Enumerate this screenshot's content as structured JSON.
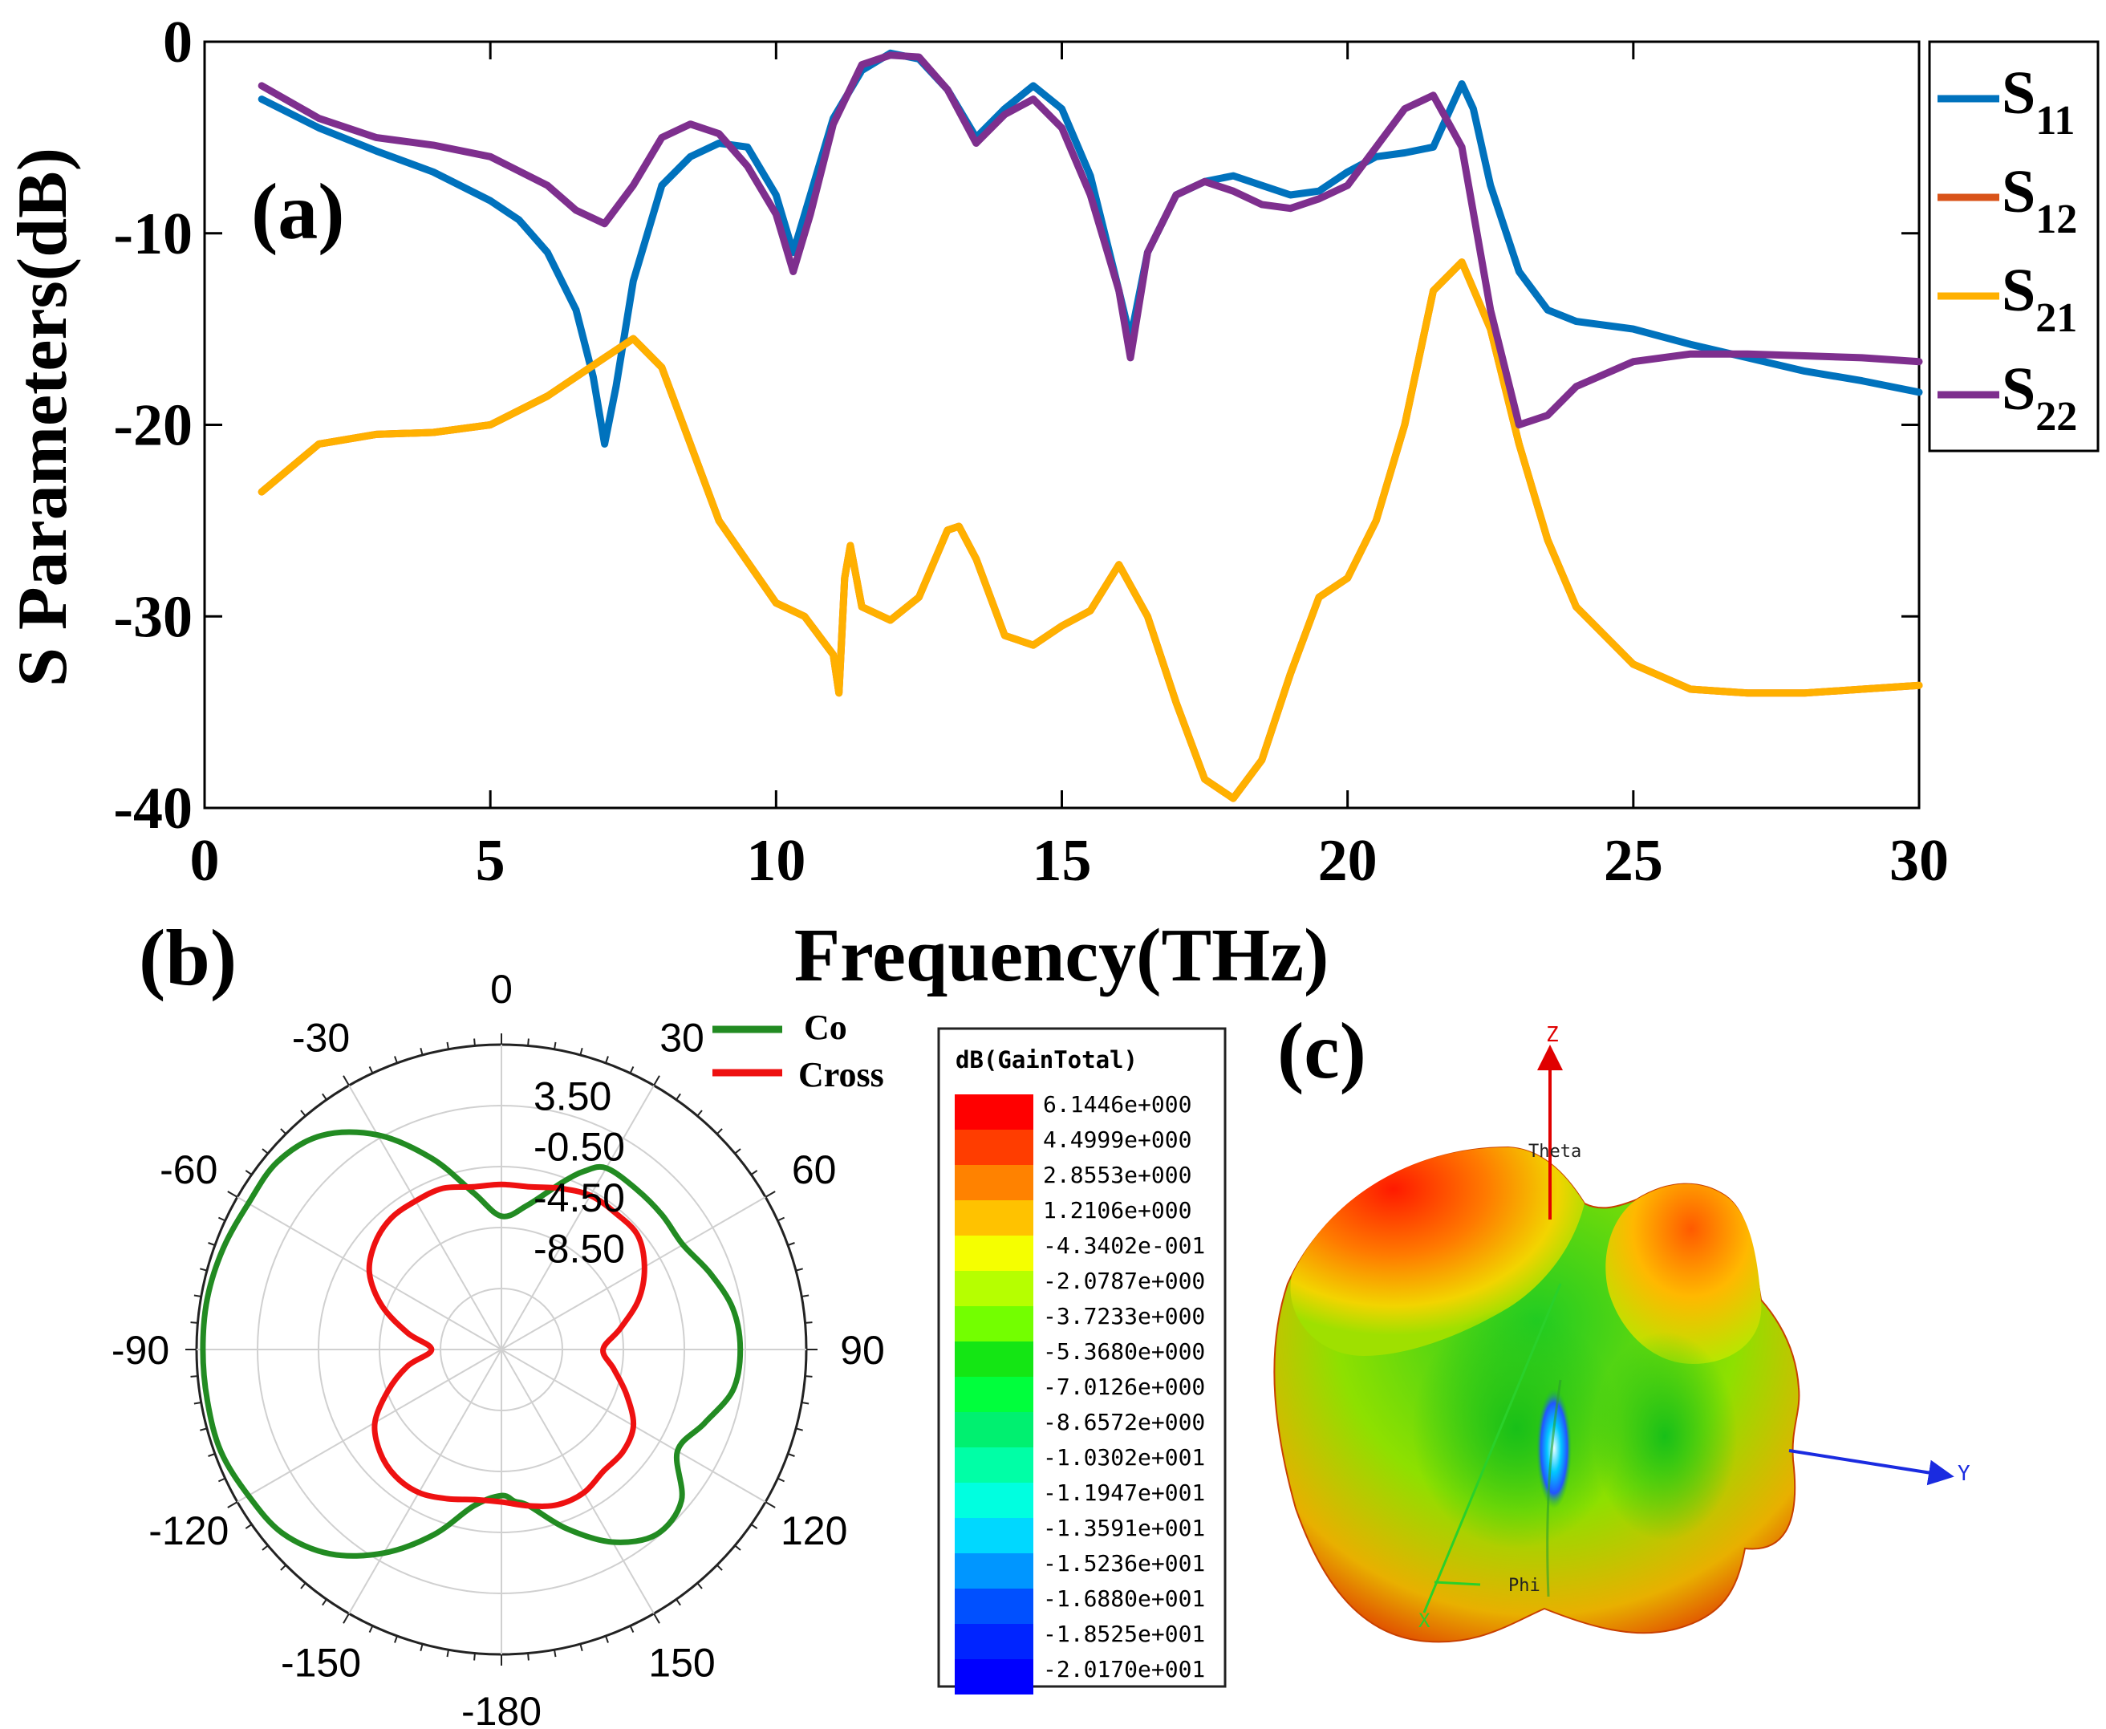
{
  "panel_labels": {
    "a": "(a)",
    "b": "(b)",
    "c": "(c)"
  },
  "chart_data": [
    {
      "type": "line",
      "panel": "(a)",
      "xlabel": "Frequency(THz)",
      "ylabel": "S Parameters(dB)",
      "xlim": [
        0,
        30
      ],
      "ylim": [
        -40,
        0
      ],
      "xticks": [
        0,
        5,
        10,
        15,
        20,
        25,
        30
      ],
      "yticks": [
        0,
        -10,
        -20,
        -30,
        -40
      ],
      "grid": false,
      "legend_position": "outside-right",
      "series": [
        {
          "name": "S",
          "sub": "11",
          "color": "#0072BD",
          "x": [
            1,
            2,
            3,
            4,
            5,
            5.5,
            6,
            6.5,
            6.8,
            7,
            7.2,
            7.5,
            8,
            8.5,
            9,
            9.5,
            10,
            10.3,
            10.6,
            11,
            11.5,
            12,
            12.5,
            13,
            13.5,
            14,
            14.5,
            15,
            15.5,
            16,
            16.2,
            16.5,
            17,
            17.5,
            18,
            18.5,
            19,
            19.5,
            20,
            20.5,
            21,
            21.5,
            21.8,
            22,
            22.2,
            22.5,
            23,
            23.5,
            24,
            25,
            26,
            27,
            28,
            29,
            30
          ],
          "y": [
            -3,
            -4.5,
            -5.7,
            -6.8,
            -8.3,
            -9.3,
            -11,
            -14,
            -17.5,
            -21,
            -18,
            -12.5,
            -7.5,
            -6,
            -5.3,
            -5.5,
            -8,
            -11,
            -8,
            -4,
            -1.5,
            -0.6,
            -0.9,
            -2.5,
            -5,
            -3.5,
            -2.3,
            -3.5,
            -7,
            -13,
            -15.5,
            -11,
            -8,
            -7.3,
            -7,
            -7.5,
            -8,
            -7.8,
            -6.8,
            -6,
            -5.8,
            -5.5,
            -3.5,
            -2.2,
            -3.5,
            -7.5,
            -12,
            -14,
            -14.6,
            -15,
            -15.8,
            -16.5,
            -17.2,
            -17.7,
            -18.3
          ]
        },
        {
          "name": "S",
          "sub": "12",
          "color": "#D95319",
          "x": [
            1,
            2,
            3,
            4,
            5,
            6,
            7,
            7.5,
            8,
            9,
            10,
            10.5,
            11,
            11.1,
            11.2,
            11.3,
            11.5,
            12,
            12.5,
            13,
            13.2,
            13.5,
            14,
            14.5,
            15,
            15.5,
            16,
            16.5,
            17,
            17.5,
            18,
            18.5,
            19,
            19.5,
            20,
            20.5,
            21,
            21.5,
            22,
            22.5,
            23,
            23.5,
            24,
            25,
            26,
            27,
            28,
            29,
            30
          ],
          "y": [
            -23.5,
            -21,
            -20.5,
            -20.4,
            -20,
            -18.5,
            -16.5,
            -15.5,
            -17,
            -25,
            -29.3,
            -30,
            -32,
            -34,
            -28,
            -26.3,
            -29.5,
            -30.2,
            -29,
            -25.5,
            -25.3,
            -27,
            -31,
            -31.5,
            -30.5,
            -29.7,
            -27.3,
            -30,
            -34.5,
            -38.5,
            -39.5,
            -37.5,
            -33,
            -29,
            -28,
            -25,
            -20,
            -13,
            -11.5,
            -15,
            -21,
            -26,
            -29.5,
            -32.5,
            -33.8,
            -34,
            -34,
            -33.8,
            -33.6
          ]
        },
        {
          "name": "S",
          "sub": "21",
          "color": "#FFB000",
          "x": [
            1,
            2,
            3,
            4,
            5,
            6,
            7,
            7.5,
            8,
            9,
            10,
            10.5,
            11,
            11.1,
            11.2,
            11.3,
            11.5,
            12,
            12.5,
            13,
            13.2,
            13.5,
            14,
            14.5,
            15,
            15.5,
            16,
            16.5,
            17,
            17.5,
            18,
            18.5,
            19,
            19.5,
            20,
            20.5,
            21,
            21.5,
            22,
            22.5,
            23,
            23.5,
            24,
            25,
            26,
            27,
            28,
            29,
            30
          ],
          "y": [
            -23.5,
            -21,
            -20.5,
            -20.4,
            -20,
            -18.5,
            -16.5,
            -15.5,
            -17,
            -25,
            -29.3,
            -30,
            -32,
            -34,
            -28,
            -26.3,
            -29.5,
            -30.2,
            -29,
            -25.5,
            -25.3,
            -27,
            -31,
            -31.5,
            -30.5,
            -29.7,
            -27.3,
            -30,
            -34.5,
            -38.5,
            -39.5,
            -37.5,
            -33,
            -29,
            -28,
            -25,
            -20,
            -13,
            -11.5,
            -15,
            -21,
            -26,
            -29.5,
            -32.5,
            -33.8,
            -34,
            -34,
            -33.8,
            -33.6
          ]
        },
        {
          "name": "S",
          "sub": "22",
          "color": "#7E2F8E",
          "x": [
            1,
            2,
            3,
            4,
            5,
            6,
            6.5,
            7,
            7.5,
            8,
            8.5,
            9,
            9.5,
            10,
            10.3,
            10.6,
            11,
            11.5,
            12,
            12.5,
            13,
            13.5,
            14,
            14.5,
            15,
            15.5,
            16,
            16.2,
            16.5,
            17,
            17.5,
            18,
            18.5,
            19,
            19.5,
            20,
            20.5,
            21,
            21.5,
            22,
            22.5,
            23,
            23.5,
            24,
            25,
            26,
            27,
            28,
            29,
            30
          ],
          "y": [
            -2.3,
            -4,
            -5,
            -5.4,
            -6,
            -7.5,
            -8.8,
            -9.5,
            -7.5,
            -5,
            -4.3,
            -4.8,
            -6.5,
            -9,
            -12,
            -9,
            -4.3,
            -1.2,
            -0.7,
            -0.8,
            -2.5,
            -5.3,
            -3.8,
            -3,
            -4.5,
            -8,
            -13,
            -16.5,
            -11,
            -8,
            -7.3,
            -7.8,
            -8.5,
            -8.7,
            -8.2,
            -7.5,
            -5.5,
            -3.5,
            -2.8,
            -5.5,
            -14,
            -20,
            -19.5,
            -18,
            -16.7,
            -16.3,
            -16.3,
            -16.4,
            -16.5,
            -16.7
          ]
        }
      ]
    },
    {
      "type": "polar",
      "panel": "(b)",
      "angle_ticks": [
        "0",
        "30",
        "60",
        "90",
        "120",
        "150",
        "-180",
        "-150",
        "-120",
        "-90",
        "-60",
        "-30"
      ],
      "angle_values": [
        0,
        30,
        60,
        90,
        120,
        150,
        180,
        -150,
        -120,
        -90,
        -60,
        -30
      ],
      "radial_ticks": [
        "3.50",
        "-0.50",
        "-4.50",
        "-8.50"
      ],
      "radial_values": [
        3.5,
        -0.5,
        -4.5,
        -8.5
      ],
      "rlim": [
        -16.5,
        7.5
      ],
      "legend_position": "top-right",
      "series": [
        {
          "name": "Co",
          "color": "#228B22",
          "theta": [
            0,
            10,
            20,
            25,
            30,
            40,
            50,
            60,
            70,
            80,
            90,
            100,
            110,
            120,
            130,
            140,
            150,
            160,
            170,
            175,
            180,
            190,
            200,
            210,
            220,
            230,
            240,
            250,
            260,
            270,
            280,
            290,
            300,
            310,
            320,
            330,
            340,
            350
          ],
          "r": [
            -6.0,
            -5.0,
            -2.5,
            -1.0,
            0.0,
            0.0,
            0.0,
            0.0,
            1.0,
            2.0,
            2.3,
            2.0,
            0.5,
            -0.5,
            2.0,
            2.5,
            1.0,
            -1.5,
            -4.0,
            -4.5,
            -5.0,
            -4.0,
            -1.0,
            2.0,
            4.5,
            6.0,
            6.5,
            7.0,
            7.0,
            7.0,
            7.0,
            6.8,
            6.5,
            6.5,
            5.5,
            3.0,
            -0.5,
            -4.0
          ]
        },
        {
          "name": "Cross",
          "color": "#EE1111",
          "theta": [
            0,
            10,
            20,
            30,
            40,
            50,
            60,
            70,
            80,
            90,
            100,
            110,
            120,
            130,
            140,
            150,
            160,
            170,
            180,
            190,
            200,
            210,
            220,
            230,
            240,
            250,
            260,
            270,
            280,
            290,
            300,
            310,
            320,
            330,
            340,
            350
          ],
          "r": [
            -3.5,
            -3.5,
            -3.0,
            -2.5,
            -2.5,
            -2.5,
            -3.5,
            -5.0,
            -7.0,
            -8.5,
            -7.5,
            -6.0,
            -4.5,
            -4.0,
            -4.0,
            -3.5,
            -3.5,
            -4.0,
            -4.5,
            -4.5,
            -4.0,
            -3.5,
            -3.5,
            -4.0,
            -5.0,
            -7.0,
            -9.0,
            -11.0,
            -9.0,
            -6.5,
            -4.5,
            -3.5,
            -3.0,
            -3.0,
            -3.0,
            -3.5
          ]
        }
      ]
    }
  ],
  "panel_c": {
    "colorbar_title": "dB(GainTotal)",
    "colorbar_values": [
      "6.1446e+000",
      "4.4999e+000",
      "2.8553e+000",
      "1.2106e+000",
      "-4.3402e-001",
      "-2.0787e+000",
      "-3.7233e+000",
      "-5.3680e+000",
      "-7.0126e+000",
      "-8.6572e+000",
      "-1.0302e+001",
      "-1.1947e+001",
      "-1.3591e+001",
      "-1.5236e+001",
      "-1.6880e+001",
      "-1.8525e+001",
      "-2.0170e+001"
    ],
    "colorbar_colors": [
      "#ff0000",
      "#ff3d00",
      "#ff8200",
      "#ffc200",
      "#f5ff00",
      "#b6ff00",
      "#73ff00",
      "#14e614",
      "#00ff3c",
      "#00f070",
      "#00ffa6",
      "#00ffe0",
      "#00d8ff",
      "#0096ff",
      "#0050ff",
      "#0024ff",
      "#0000ff"
    ],
    "axis_labels": {
      "z": "Z",
      "y": "Y",
      "x": "X",
      "theta": "Theta",
      "phi": "Phi"
    }
  }
}
